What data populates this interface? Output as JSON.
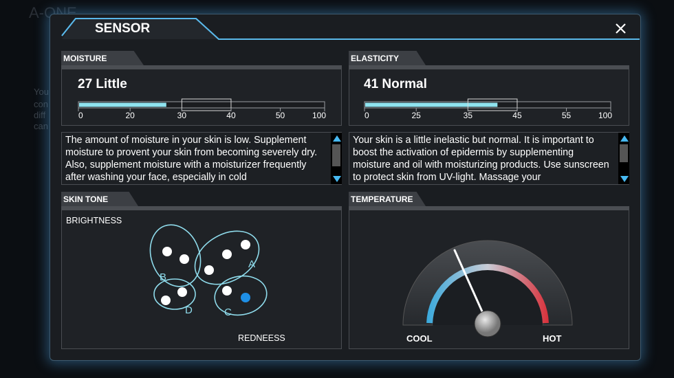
{
  "background": {
    "brand": "A-ONE",
    "lines": [
      "You",
      "con",
      "diff",
      "can"
    ]
  },
  "header": {
    "title": "SENSOR"
  },
  "moisture": {
    "label": "MOISTURE",
    "value": 27,
    "status": "Little",
    "scale": {
      "ticks": [
        0,
        20,
        30,
        40,
        50,
        100
      ],
      "normal_range": [
        30,
        40
      ]
    },
    "description": "The amount of moisture in your skin is low. Supplement moisture to provent your skin from becoming severely dry. Also, supplement moisture  with a moisturizer frequently after washing your face, especially in cold"
  },
  "elasticity": {
    "label": "ELASTICITY",
    "value": 41,
    "status": "Normal",
    "scale": {
      "ticks": [
        0,
        25,
        35,
        45,
        55,
        100
      ],
      "normal_range": [
        35,
        45
      ]
    },
    "description": "Your skin is a little inelastic but normal. It is important to boost the activation of epidermis by supplementing moisture and oil with moisturizing products. Use sunscreen to protect skin from UV-light. Massage your"
  },
  "skin_tone": {
    "label": "SKIN TONE",
    "y_axis": "BRIGHTNESS",
    "x_axis": "REDNEESS",
    "groups": [
      "A",
      "B",
      "C",
      "D"
    ]
  },
  "temperature": {
    "label": "TEMPERATURE",
    "low": "COOL",
    "high": "HOT"
  }
}
